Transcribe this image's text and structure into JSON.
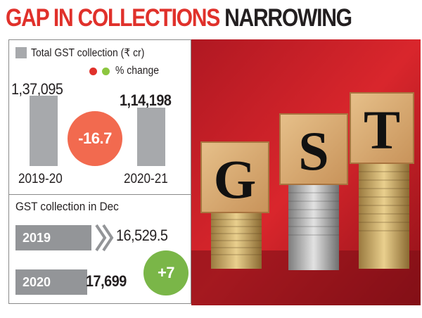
{
  "headline": {
    "part1": "GAP IN COLLECTIONS",
    "part2": "NARROWING"
  },
  "colors": {
    "accent_red": "#e0312b",
    "decrease_circle": "#f26a4f",
    "increase_circle": "#7ab648",
    "bar_gray": "#a7a9ac",
    "dec_bar_gray": "#939598",
    "dot_red": "#e0312b",
    "dot_green": "#8cc63f"
  },
  "chart_data": [
    {
      "type": "bar",
      "legend": {
        "bar_label": "Total GST collection (₹ cr)",
        "change_label": "% change"
      },
      "categories": [
        "2019-20",
        "2020-21"
      ],
      "values": [
        137095,
        114198
      ],
      "value_labels": [
        "1,37,095",
        "1,14,198"
      ],
      "change": {
        "value": -16.7,
        "label": "-16.7"
      }
    },
    {
      "type": "bar",
      "orientation": "horizontal",
      "title": "GST collection in Dec",
      "categories": [
        "2019",
        "2020"
      ],
      "values": [
        16529.5,
        17699
      ],
      "value_labels": [
        "16,529.5",
        "17,699"
      ],
      "change": {
        "value": 7,
        "label": "+7"
      }
    }
  ],
  "photo": {
    "letters": [
      "G",
      "S",
      "T"
    ]
  }
}
